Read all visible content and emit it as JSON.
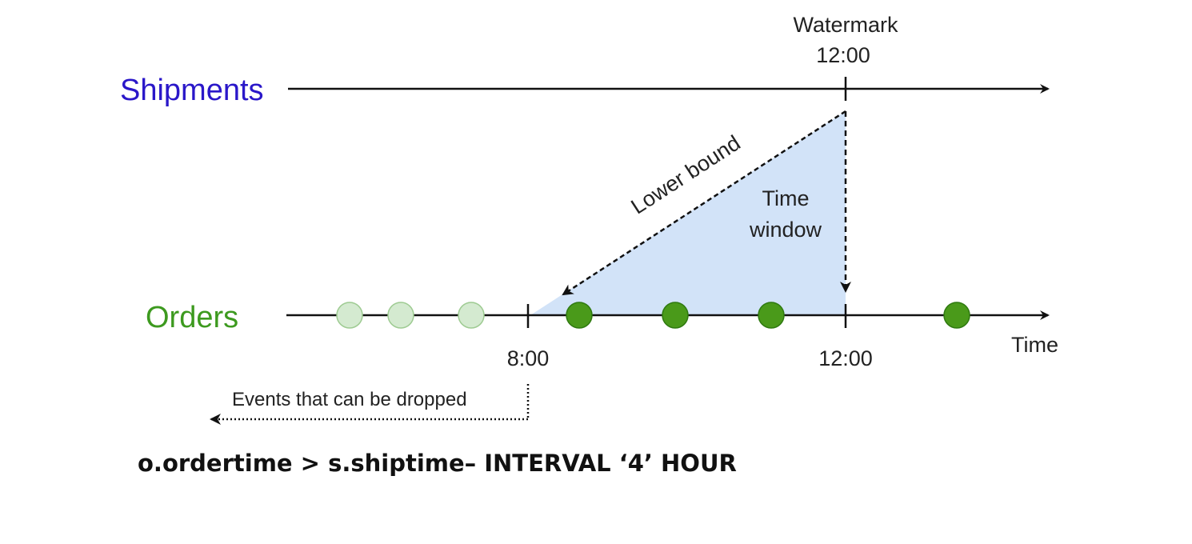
{
  "colors": {
    "shipments_label": "#2a17c9",
    "orders_label": "#3d9a1f",
    "event_active_fill": "#4a9a1a",
    "event_active_stroke": "#2f7a10",
    "event_dropped_fill": "#d4ead0",
    "event_dropped_stroke": "#9ecb92",
    "window_fill": "#d2e3f8",
    "line": "#111111"
  },
  "streams": {
    "shipments_label": "Shipments",
    "orders_label": "Orders"
  },
  "watermark": {
    "title": "Watermark",
    "time": "12:00"
  },
  "window": {
    "lower_bound_label": "Lower bound",
    "time_window_line1": "Time",
    "time_window_line2": "window"
  },
  "axis": {
    "start_tick": "8:00",
    "end_tick": "12:00",
    "time_label": "Time"
  },
  "dropped": {
    "label": "Events that can be dropped"
  },
  "events": {
    "dropped_count": 3,
    "active_count": 4
  },
  "formula": "o.ordertime > s.shiptime– INTERVAL ‘4’ HOUR"
}
